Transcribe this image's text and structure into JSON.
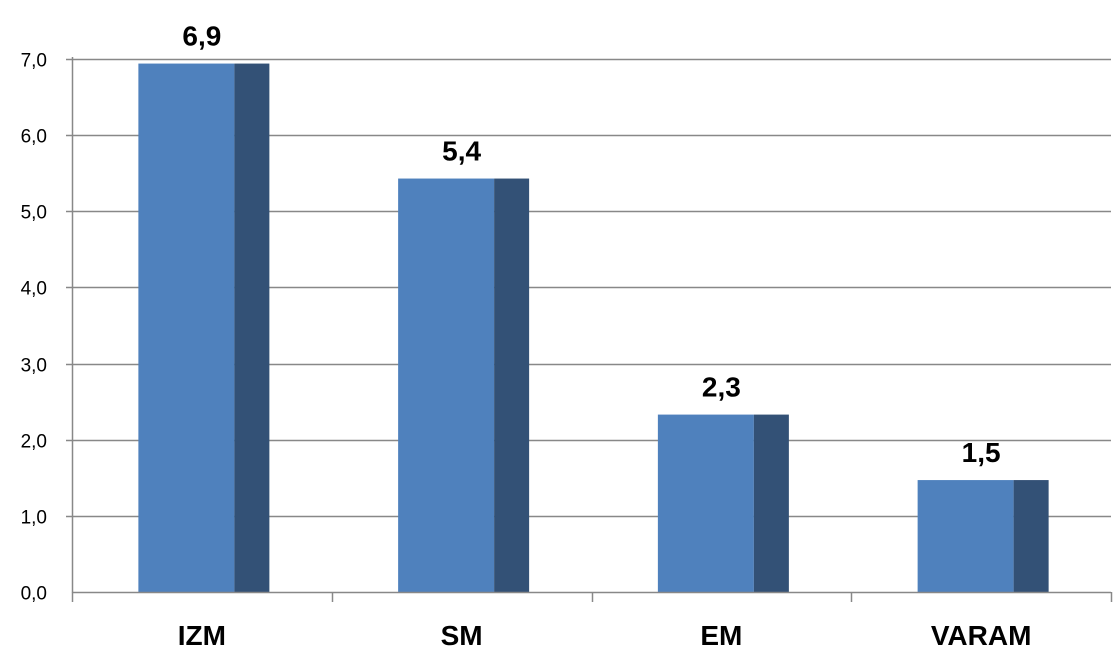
{
  "chart_data": {
    "type": "bar",
    "categories": [
      "IZM",
      "SM",
      "EM",
      "VARAM"
    ],
    "values": [
      6.94,
      5.43,
      2.33,
      1.47
    ],
    "data_labels": [
      "6,9",
      "5,4",
      "2,3",
      "1,5"
    ],
    "ylim": [
      0,
      7
    ],
    "yticks": [
      0,
      1,
      2,
      3,
      4,
      5,
      6,
      7
    ],
    "ytick_labels": [
      "0,0",
      "1,0",
      "2,0",
      "3,0",
      "4,0",
      "5,0",
      "6,0",
      "7,0"
    ],
    "grid": true,
    "legend": "none",
    "colors": {
      "bar_front": "#4f81bd",
      "bar_side": "#335176",
      "grid": "#888888"
    }
  }
}
